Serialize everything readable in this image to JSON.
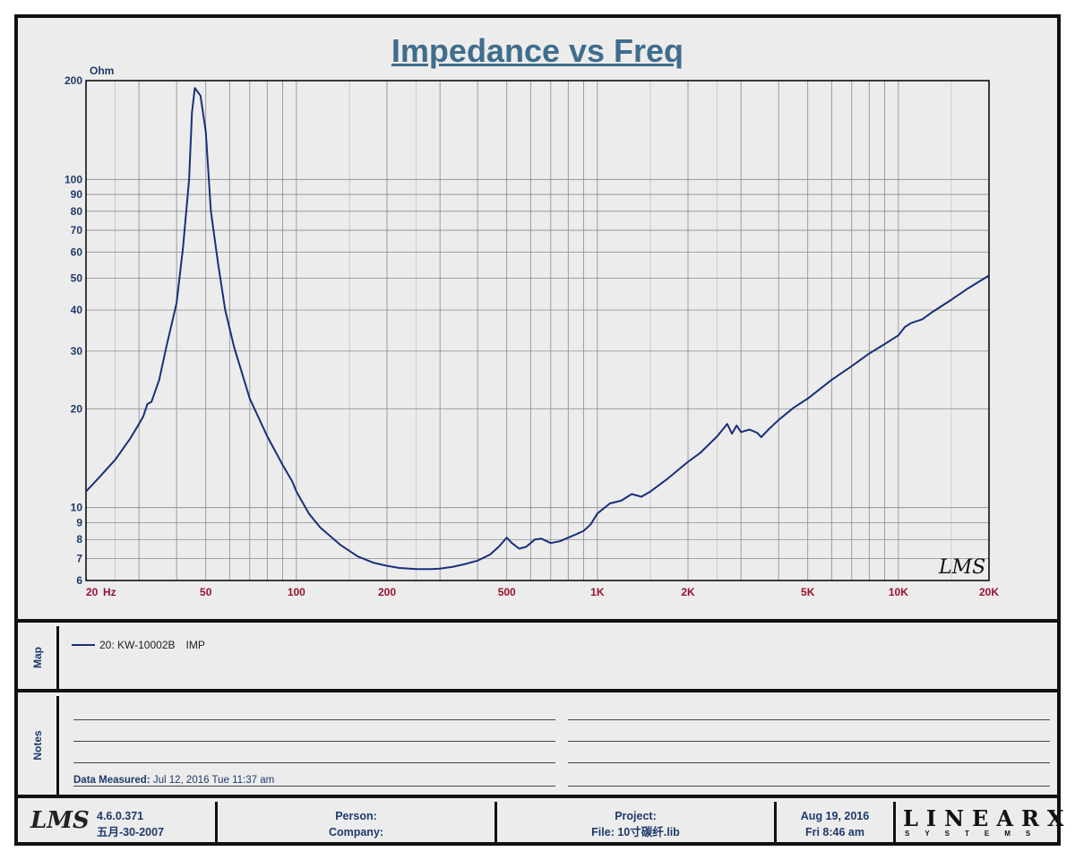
{
  "chart_data": {
    "type": "line",
    "title": "Impedance vs Freq",
    "ylabel": "Ohm",
    "xunit": "Hz",
    "xscale": "log",
    "yscale": "log",
    "xlim": [
      20,
      20000
    ],
    "ylim": [
      6,
      200
    ],
    "grid": true,
    "x_ticks": [
      20,
      50,
      100,
      200,
      500,
      1000,
      2000,
      5000,
      10000,
      20000
    ],
    "x_tick_labels": [
      "20",
      "50",
      "100",
      "200",
      "500",
      "1K",
      "2K",
      "5K",
      "10K",
      "20K"
    ],
    "y_ticks": [
      6,
      7,
      8,
      9,
      10,
      20,
      30,
      40,
      50,
      60,
      70,
      80,
      90,
      100,
      200
    ],
    "y_tick_labels": [
      "6",
      "7",
      "8",
      "9",
      "10",
      "20",
      "30",
      "40",
      "50",
      "60",
      "70",
      "80",
      "90",
      "100",
      "200"
    ],
    "series": [
      {
        "name": "20: KW-10002B",
        "color": "#1a2f7a",
        "x": [
          20,
          22,
          25,
          28,
          30,
          31,
          32,
          33,
          35,
          37,
          40,
          42,
          44,
          45,
          46,
          48,
          50,
          52,
          55,
          58,
          62,
          70,
          80,
          90,
          97,
          100,
          110,
          120,
          140,
          160,
          180,
          200,
          220,
          250,
          280,
          300,
          330,
          360,
          400,
          440,
          470,
          500,
          520,
          550,
          580,
          620,
          650,
          700,
          750,
          800,
          850,
          900,
          950,
          1000,
          1100,
          1200,
          1300,
          1400,
          1500,
          1700,
          2000,
          2200,
          2500,
          2700,
          2800,
          2900,
          3000,
          3200,
          3400,
          3500,
          3700,
          4000,
          4500,
          5000,
          6000,
          7000,
          8000,
          9000,
          10000,
          10500,
          11000,
          12000,
          13000,
          15000,
          17000,
          20000
        ],
        "y": [
          11.2,
          12.3,
          14,
          16.2,
          18,
          19,
          20.7,
          21,
          24.5,
          31,
          42,
          62,
          100,
          160,
          190,
          180,
          140,
          80,
          55,
          40,
          31,
          21.5,
          16.5,
          13.5,
          12,
          11.2,
          9.6,
          8.7,
          7.7,
          7.1,
          6.8,
          6.65,
          6.55,
          6.5,
          6.5,
          6.52,
          6.6,
          6.72,
          6.9,
          7.2,
          7.6,
          8.1,
          7.8,
          7.5,
          7.6,
          8.0,
          8.05,
          7.8,
          7.9,
          8.1,
          8.3,
          8.5,
          8.9,
          9.6,
          10.3,
          10.5,
          11.0,
          10.8,
          11.2,
          12.2,
          13.8,
          14.7,
          16.5,
          18.0,
          16.8,
          17.8,
          17.0,
          17.3,
          16.9,
          16.4,
          17.3,
          18.5,
          20.2,
          21.5,
          24.5,
          27.0,
          29.5,
          31.5,
          33.5,
          35.5,
          36.5,
          37.5,
          39.5,
          43.0,
          46.5,
          51.0
        ]
      }
    ]
  },
  "map": {
    "label": "Map",
    "legend": [
      {
        "series": "20: KW-10002B",
        "measurement": "IMP"
      }
    ]
  },
  "notes": {
    "label": "Notes",
    "measured_label": "Data Measured:",
    "measured_value": "Jul 12, 2016  Tue 11:37 am"
  },
  "footer": {
    "logo_text": "LMS",
    "version": "4.6.0.371",
    "version_date": "五月-30-2007",
    "person_label": "Person:",
    "company_label": "Company:",
    "project_label": "Project:",
    "file_label": "File: 10寸碳纤.lib",
    "date": "Aug 19, 2016",
    "time": "Fri  8:46 am",
    "brand": "LINEARX",
    "brand_sub": "SYSTEMS"
  },
  "watermark": "LMS"
}
